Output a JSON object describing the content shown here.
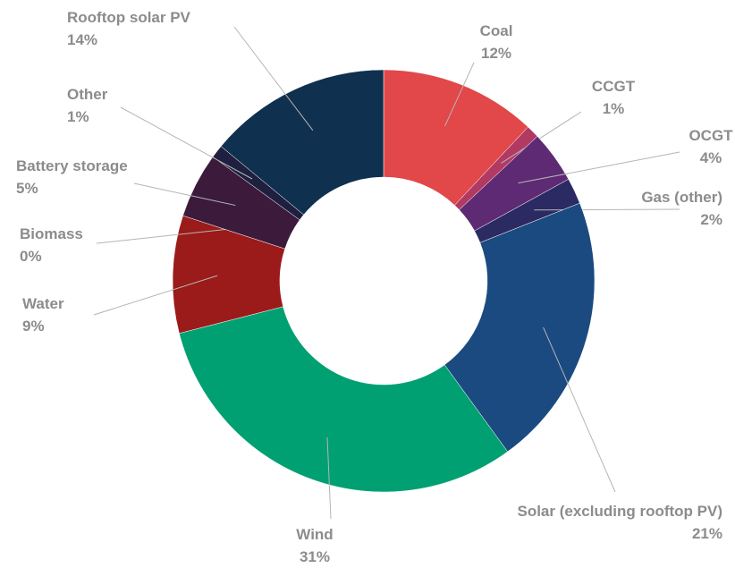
{
  "chart_data": {
    "type": "donut",
    "categories": [
      "Coal",
      "CCGT",
      "OCGT",
      "Gas (other)",
      "Solar (excluding rooftop PV)",
      "Wind",
      "Water",
      "Biomass",
      "Battery storage",
      "Other",
      "Rooftop solar PV"
    ],
    "values": [
      12,
      1,
      4,
      2,
      21,
      31,
      9,
      0,
      5,
      1,
      14
    ],
    "value_labels": [
      "12%",
      "1%",
      "4%",
      "2%",
      "21%",
      "31%",
      "9%",
      "0%",
      "5%",
      "1%",
      "14%"
    ],
    "colors": [
      "#e2474a",
      "#b23a62",
      "#5e2a74",
      "#2b2a62",
      "#1a4a80",
      "#00a072",
      "#9b1a1a",
      "#6a1a1a",
      "#3b1a3c",
      "#1f1f3f",
      "#10304f"
    ]
  }
}
